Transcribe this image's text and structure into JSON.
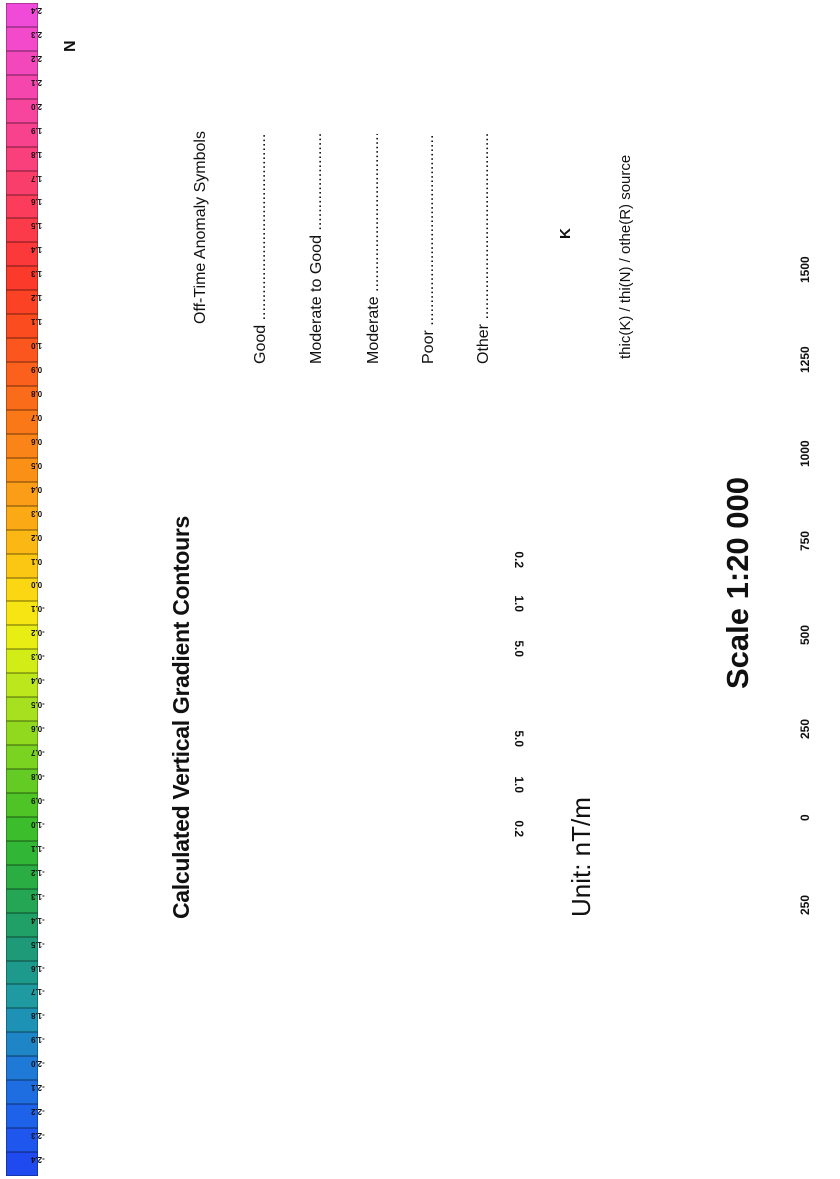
{
  "contour_panel": {
    "title": "Calculated Vertical Gradient Contours",
    "unit": "Unit: nT/m",
    "contour_labels": [
      "0.2",
      "1.0",
      "5.0",
      "5.0",
      "1.0",
      "0.2"
    ]
  },
  "north_arrow": {
    "label": "N",
    "icon": "north-arrow-icon"
  },
  "legend": {
    "heading": "Off-Time Anomaly Symbols",
    "items": [
      {
        "label": "Good ...........................................",
        "icon": "good-symbol-icon"
      },
      {
        "label": "Moderate to Good .........................",
        "icon": "moderate-to-good-symbol-icon"
      },
      {
        "label": "Moderate ......................................",
        "icon": "moderate-symbol-icon"
      },
      {
        "label": "Poor ..............................................",
        "icon": "poor-symbol-icon"
      },
      {
        "label": "Other ............................................",
        "icon": "other-symbol-icon"
      }
    ],
    "source_key_letter": "K",
    "source_text": "thic(K) / thi(N) / othe(R) source"
  },
  "scale": {
    "title": "Scale 1:20 000",
    "ticks": [
      "250",
      "0",
      "250",
      "500",
      "750",
      "1000",
      "1250",
      "1500"
    ]
  },
  "colorbar": {
    "labels": [
      "2.4",
      "2.3",
      "2.2",
      "2.1",
      "2.0",
      "1.9",
      "1.8",
      "1.7",
      "1.6",
      "1.5",
      "1.4",
      "1.3",
      "1.2",
      "1.1",
      "1.0",
      "0.9",
      "0.8",
      "0.7",
      "0.6",
      "0.5",
      "0.4",
      "0.3",
      "0.2",
      "0.1",
      "0.0",
      "-0.1",
      "-0.2",
      "-0.3",
      "-0.4",
      "-0.5",
      "-0.6",
      "-0.7",
      "-0.8",
      "-0.9",
      "-1.0",
      "-1.1",
      "-1.2",
      "-1.3",
      "-1.4",
      "-1.5",
      "-1.6",
      "-1.7",
      "-1.8",
      "-1.9",
      "-2.0",
      "-2.1",
      "-2.2",
      "-2.3",
      "-2.4"
    ],
    "colors": [
      "#f04bd8",
      "#f24acb",
      "#f348bc",
      "#f546ad",
      "#f7449d",
      "#f8428d",
      "#f9407c",
      "#fa3e6b",
      "#fb3c5a",
      "#fb3a4a",
      "#fb383a",
      "#fb3a2c",
      "#fb4224",
      "#fb4c20",
      "#fb561e",
      "#fb611c",
      "#fb6c1a",
      "#fb7819",
      "#fb8418",
      "#fb9017",
      "#fb9d16",
      "#fbaa15",
      "#fbb814",
      "#fbc713",
      "#fbd612",
      "#f6e512",
      "#e8ee14",
      "#d2ec18",
      "#bce71c",
      "#a6e01e",
      "#90d91f",
      "#7ad221",
      "#64cb24",
      "#4ec427",
      "#3cbd2c",
      "#32b636",
      "#2aae44",
      "#24a654",
      "#209f66",
      "#1e9a79",
      "#1e9a8c",
      "#1e9aa0",
      "#1e92b4",
      "#1e86c6",
      "#1e7ad6",
      "#1e6ee2",
      "#1e62ea",
      "#1e56ee",
      "#1e4af0"
    ]
  }
}
